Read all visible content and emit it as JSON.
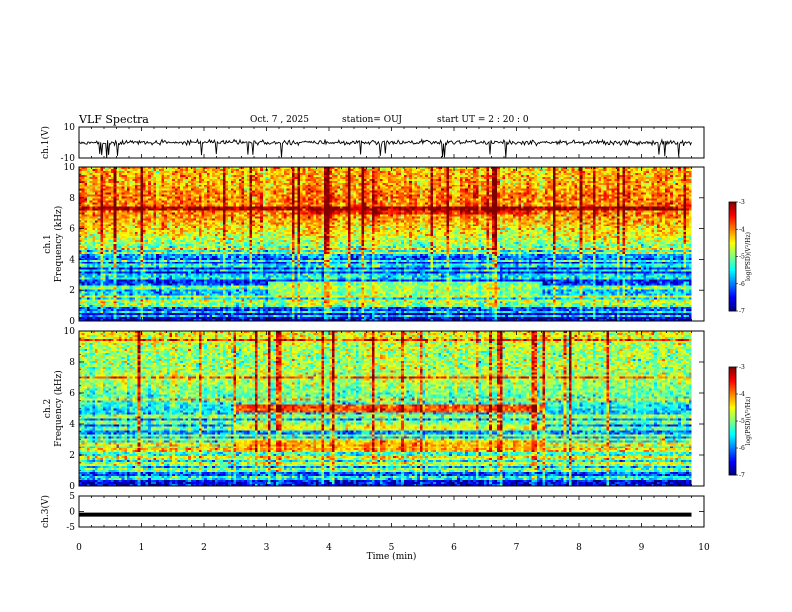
{
  "header": {
    "title": "VLF Spectra",
    "date": "Oct. 7 , 2025",
    "station": "station= OUJ",
    "start": "start  UT =  2 : 20 : 0"
  },
  "chart_data": [
    {
      "type": "line",
      "panel": "ch1",
      "ylabel": "ch.1(V)",
      "ylim": [
        -10,
        10
      ],
      "yticks": [
        10,
        -10
      ],
      "xlim": [
        0,
        10
      ],
      "trace_baseline_V": 0,
      "trace_approx_noise_V": 1.5,
      "trace_spikes_to_V": -10
    },
    {
      "type": "heatmap",
      "panel": "ch1",
      "ylabel": "Frequency (kHz)",
      "side_label": "ch.1",
      "ylim": [
        0,
        10
      ],
      "yticks": [
        0,
        2,
        4,
        6,
        8,
        10
      ],
      "xlim": [
        0,
        10
      ],
      "data_end_min": 9.8,
      "colorbar": {
        "label": "log(PSD)(V²/Hz)",
        "range": [
          -7,
          -3
        ],
        "ticks": [
          "-3",
          "-4",
          "-5",
          "-6",
          "-7"
        ]
      },
      "profile_freq_kHz": [
        0,
        0.5,
        1,
        1.5,
        2,
        2.5,
        3,
        3.5,
        4,
        4.5,
        5,
        5.5,
        6,
        6.5,
        7,
        7.5,
        8,
        8.5,
        9,
        9.5,
        10
      ],
      "profile_log_psd": [
        -6.8,
        -6.6,
        -5.9,
        -5.6,
        -5.8,
        -6.4,
        -6.5,
        -6.4,
        -6.2,
        -5.6,
        -4.9,
        -4.6,
        -4.4,
        -4.2,
        -4.0,
        -4.0,
        -4.0,
        -4.1,
        -4.2,
        -4.2,
        -4.3
      ],
      "lines_kHz": [
        0.3,
        0.6,
        1.0,
        1.3,
        1.6,
        2.2,
        2.8,
        3.0,
        3.3,
        3.6,
        3.9,
        4.4,
        4.7,
        7.3
      ],
      "bands": [
        {
          "t": [
            3.0,
            7.4
          ],
          "f": [
            1.6,
            2.5
          ],
          "value": -5.0
        },
        {
          "t": [
            3.5,
            7.4
          ],
          "f": [
            6.9,
            7.2
          ],
          "value": -3.6
        }
      ]
    },
    {
      "type": "heatmap",
      "panel": "ch2",
      "ylabel": "Frequency (kHz)",
      "side_label": "ch.2",
      "ylim": [
        0,
        10
      ],
      "yticks": [
        0,
        2,
        4,
        6,
        8,
        10
      ],
      "xlim": [
        0,
        10
      ],
      "data_end_min": 9.8,
      "colorbar": {
        "label": "log(PSD)(V²/Hz)",
        "range": [
          -7,
          -3
        ],
        "ticks": [
          "-3",
          "-4",
          "-5",
          "-6",
          "-7"
        ]
      },
      "profile_freq_kHz": [
        0,
        0.5,
        1,
        1.5,
        2,
        2.5,
        3,
        3.5,
        4,
        4.5,
        5,
        5.5,
        6,
        6.5,
        7,
        7.5,
        8,
        8.5,
        9,
        9.5,
        10
      ],
      "profile_log_psd": [
        -6.7,
        -6.4,
        -6.0,
        -5.6,
        -5.4,
        -5.2,
        -5.6,
        -6.0,
        -6.0,
        -5.8,
        -5.5,
        -5.3,
        -5.1,
        -4.9,
        -4.8,
        -4.9,
        -4.9,
        -4.9,
        -4.8,
        -4.6,
        -4.5
      ],
      "lines_kHz": [
        0.5,
        1.0,
        1.4,
        1.8,
        2.3,
        2.7,
        3.0,
        3.3,
        3.7,
        4.1,
        4.5,
        5.6,
        7.0,
        9.4
      ],
      "bands": [
        {
          "t": [
            2.5,
            7.4
          ],
          "f": [
            4.7,
            5.2
          ],
          "value": -3.8
        },
        {
          "t": [
            2.5,
            7.4
          ],
          "f": [
            2.2,
            3.0
          ],
          "value": -4.3
        },
        {
          "t": [
            2.5,
            7.4
          ],
          "f": [
            3.6,
            4.0
          ],
          "value": -4.6
        }
      ]
    },
    {
      "type": "line",
      "panel": "ch3",
      "ylabel": "ch.3(V)",
      "ylim": [
        -5,
        5
      ],
      "yticks": [
        5,
        0,
        -5
      ],
      "xlim": [
        0,
        10
      ],
      "trace_constant_V": -1,
      "data_end_min": 9.8
    }
  ],
  "xaxis": {
    "label": "Time (min)",
    "ticks": [
      "0",
      "1",
      "2",
      "3",
      "4",
      "5",
      "6",
      "7",
      "8",
      "9",
      "10"
    ],
    "range": [
      0,
      10
    ]
  }
}
